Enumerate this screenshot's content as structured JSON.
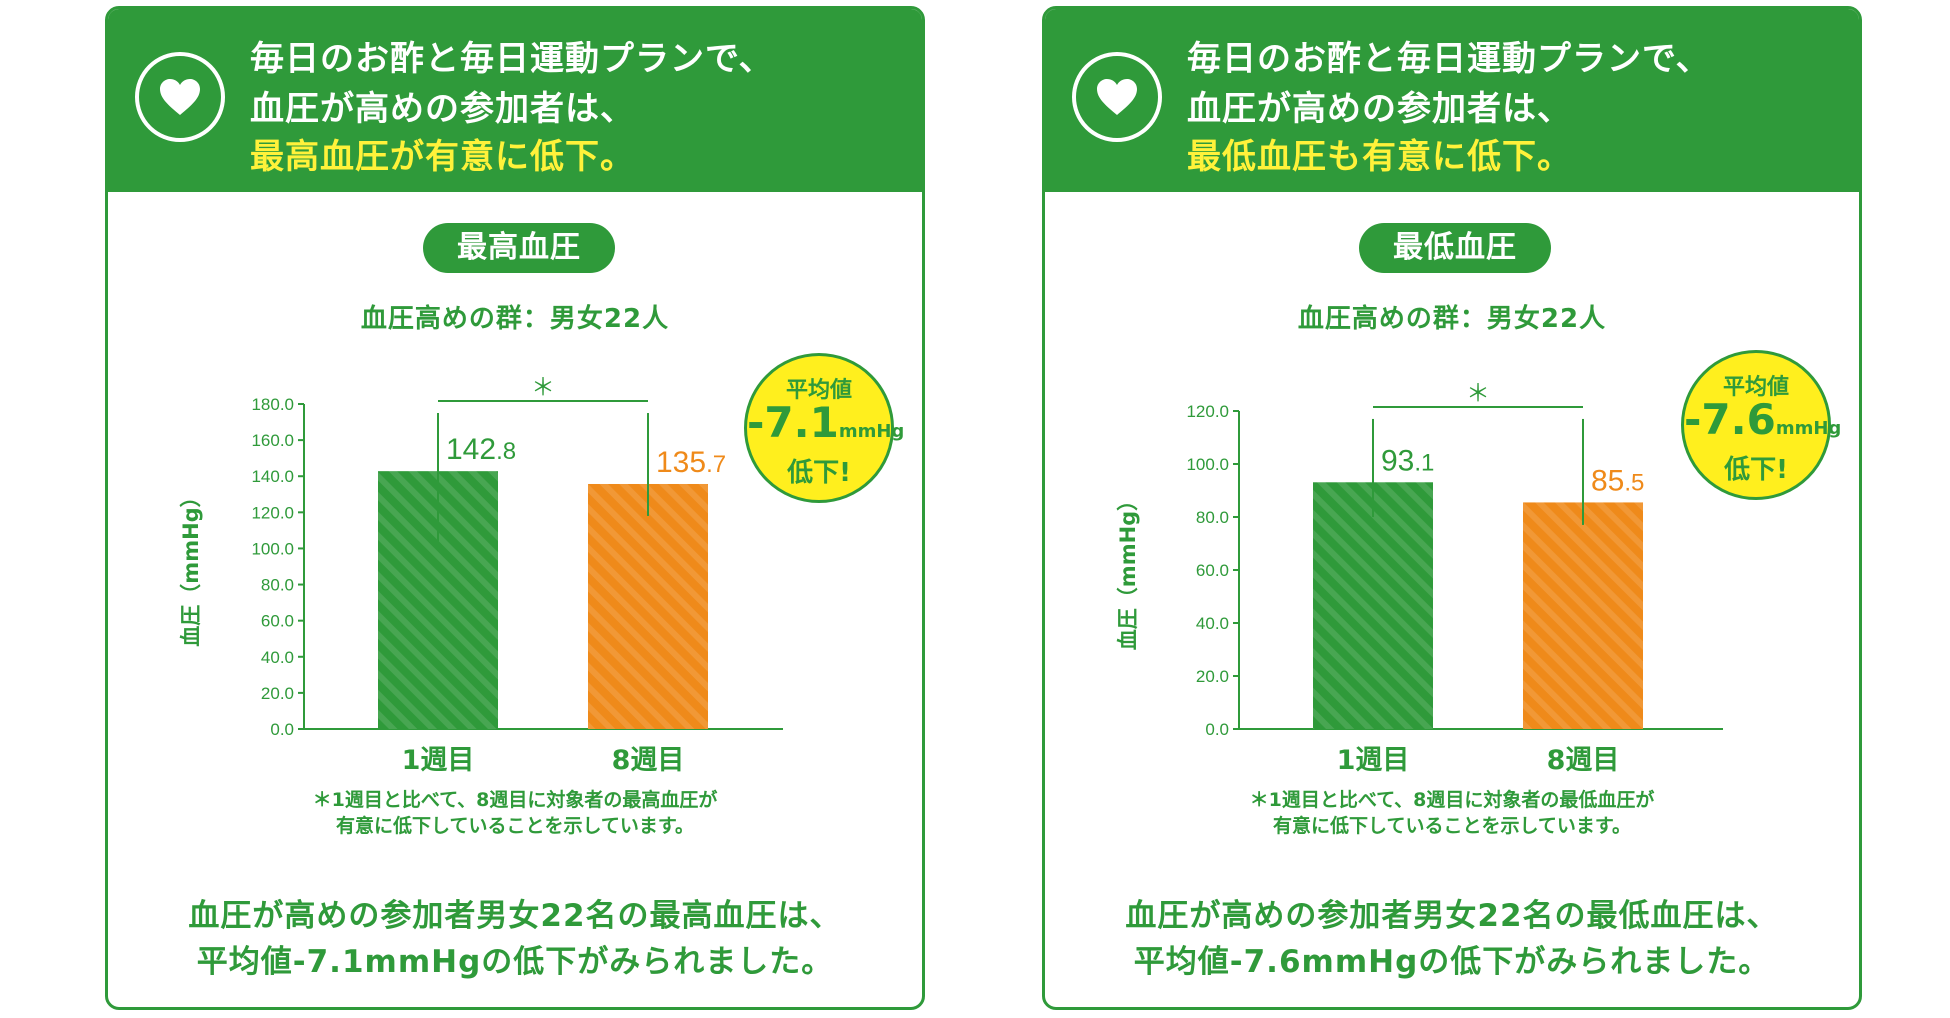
{
  "colors": {
    "green": "#2f9a3a",
    "orange": "#ef8a1a",
    "yellow_text": "#fff23a",
    "badge_yellow": "#ffef1e"
  },
  "panels": [
    {
      "header": {
        "line1": "毎日のお酢と毎日運動プランで、",
        "line2": "血圧が高めの参加者は、",
        "line3": "最高血圧が有意に低下。"
      },
      "heart_icon": "heart-icon",
      "pill": "最高血圧",
      "group": "血圧高めの群：男女22人",
      "badge": {
        "label": "平均値",
        "value": "-7.1",
        "unit": "mmHg",
        "suffix": "低下!"
      },
      "footnote": {
        "line1": "＊1週目と比べて、8週目に対象者の最高血圧が",
        "line2": "有意に低下していることを示しています。"
      },
      "summary": {
        "line1": "血圧が高めの参加者男女22名の最高血圧は、",
        "line2": "平均値-7.1mmHgの低下がみられました。"
      }
    },
    {
      "header": {
        "line1": "毎日のお酢と毎日運動プランで、",
        "line2": "血圧が高めの参加者は、",
        "line3": "最低血圧も有意に低下。"
      },
      "heart_icon": "heart-icon",
      "pill": "最低血圧",
      "group": "血圧高めの群：男女22人",
      "badge": {
        "label": "平均値",
        "value": "-7.6",
        "unit": "mmHg",
        "suffix": "低下!"
      },
      "footnote": {
        "line1": "＊1週目と比べて、8週目に対象者の最低血圧が",
        "line2": "有意に低下していることを示しています。"
      },
      "summary": {
        "line1": "血圧が高めの参加者男女22名の最低血圧は、",
        "line2": "平均値-7.6mmHgの低下がみられました。"
      }
    }
  ],
  "chart_data": [
    {
      "type": "bar",
      "categories": [
        "1週目",
        "8週目"
      ],
      "values": [
        142.8,
        135.7
      ],
      "value_labels": [
        {
          "int": "142",
          "dec": ".8"
        },
        {
          "int": "135",
          "dec": ".7"
        }
      ],
      "ylabel": "血圧（mmHg）",
      "ylim": [
        0,
        180
      ],
      "yticks": [
        "0.0",
        "20.0",
        "40.0",
        "60.0",
        "80.0",
        "100.0",
        "120.0",
        "140.0",
        "160.0",
        "180.0"
      ],
      "error_upper": [
        175,
        175
      ],
      "error_lower": [
        100,
        118
      ],
      "significance": "＊",
      "bar_colors": [
        "#2f9a3a",
        "#ef8a1a"
      ],
      "grid": false
    },
    {
      "type": "bar",
      "categories": [
        "1週目",
        "8週目"
      ],
      "values": [
        93.1,
        85.5
      ],
      "value_labels": [
        {
          "int": "93",
          "dec": ".1"
        },
        {
          "int": "85",
          "dec": ".5"
        }
      ],
      "ylabel": "血圧（mmHg）",
      "ylim": [
        0,
        120
      ],
      "yticks": [
        "0.0",
        "20.0",
        "40.0",
        "60.0",
        "80.0",
        "100.0",
        "120.0"
      ],
      "error_upper": [
        117,
        117
      ],
      "error_lower": [
        80,
        77
      ],
      "significance": "＊",
      "bar_colors": [
        "#2f9a3a",
        "#ef8a1a"
      ],
      "grid": false
    }
  ]
}
